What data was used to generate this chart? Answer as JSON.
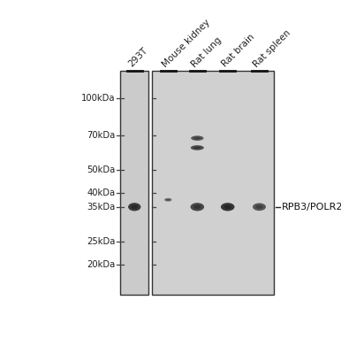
{
  "background_color": "#ffffff",
  "panel_bg": "#d0d0d0",
  "left_panel_bg": "#cbcbcb",
  "border_color": "#333333",
  "lane_labels": [
    "293T",
    "Mouse kidney",
    "Rat lung",
    "Rat brain",
    "Rat spleen"
  ],
  "mw_markers": [
    "100kDa",
    "70kDa",
    "50kDa",
    "40kDa",
    "35kDa",
    "25kDa",
    "20kDa"
  ],
  "mw_values": [
    100,
    70,
    50,
    40,
    35,
    25,
    20
  ],
  "band_label": "RPB3/POLR2C",
  "log_min": 1.176,
  "log_max": 2.114,
  "bands": [
    {
      "lane": 0,
      "kDa": 35,
      "wx": 0.048,
      "wy": 0.03,
      "dark": 0.78
    },
    {
      "lane": 1,
      "kDa": 37.5,
      "wx": 0.028,
      "wy": 0.012,
      "dark": 0.55
    },
    {
      "lane": 2,
      "kDa": 35,
      "wx": 0.052,
      "wy": 0.03,
      "dark": 0.72
    },
    {
      "lane": 3,
      "kDa": 35,
      "wx": 0.052,
      "wy": 0.03,
      "dark": 0.8
    },
    {
      "lane": 4,
      "kDa": 35,
      "wx": 0.05,
      "wy": 0.028,
      "dark": 0.65
    },
    {
      "lane": 2,
      "kDa": 68,
      "wx": 0.048,
      "wy": 0.018,
      "dark": 0.65
    },
    {
      "lane": 2,
      "kDa": 62,
      "wx": 0.05,
      "wy": 0.018,
      "dark": 0.7
    }
  ]
}
